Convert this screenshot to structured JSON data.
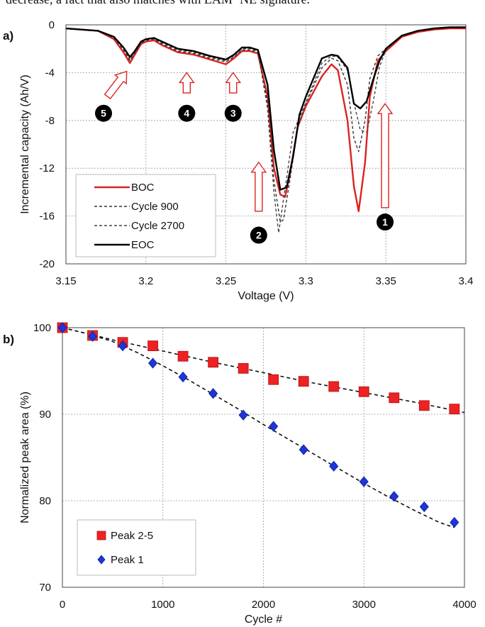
{
  "top_caption": "decrease, a fact that also matches with LAMᵈᵉNE signature.",
  "chart_data": [
    {
      "type": "line",
      "panel_label": "a)",
      "title": "",
      "xlabel": "Voltage (V)",
      "ylabel": "Incremental capacity (Ah/V)",
      "xlim": [
        3.15,
        3.4
      ],
      "ylim": [
        -20,
        0
      ],
      "x_ticks": [
        "3.15",
        "3.2",
        "3.25",
        "3.3",
        "3.35",
        "3.4"
      ],
      "y_ticks": [
        "0",
        "-4",
        "-8",
        "-12",
        "-16",
        "-20"
      ],
      "x_tick_values": [
        3.15,
        3.2,
        3.25,
        3.3,
        3.35,
        3.4
      ],
      "y_tick_values": [
        0,
        -4,
        -8,
        -12,
        -16,
        -20
      ],
      "series": [
        {
          "name": "BOC",
          "color": "#dd2222",
          "style": "solid",
          "width": 2.4,
          "x": [
            3.15,
            3.17,
            3.18,
            3.186,
            3.19,
            3.193,
            3.197,
            3.2,
            3.205,
            3.21,
            3.22,
            3.23,
            3.24,
            3.25,
            3.255,
            3.26,
            3.265,
            3.27,
            3.276,
            3.28,
            3.284,
            3.287,
            3.29,
            3.295,
            3.3,
            3.31,
            3.316,
            3.32,
            3.326,
            3.33,
            3.333,
            3.337,
            3.34,
            3.345,
            3.35,
            3.36,
            3.37,
            3.38,
            3.39,
            3.4
          ],
          "y": [
            -0.3,
            -0.5,
            -1.2,
            -2.3,
            -3.2,
            -2.5,
            -1.6,
            -1.4,
            -1.3,
            -1.7,
            -2.3,
            -2.5,
            -2.9,
            -3.3,
            -2.8,
            -2.2,
            -2.2,
            -2.4,
            -6.0,
            -12.0,
            -14.2,
            -14.4,
            -12.5,
            -8.5,
            -6.8,
            -4.3,
            -3.3,
            -3.8,
            -8.0,
            -13.5,
            -15.6,
            -11.5,
            -6.0,
            -3.0,
            -2.2,
            -1.0,
            -0.6,
            -0.4,
            -0.3,
            -0.3
          ]
        },
        {
          "name": "Cycle 900",
          "color": "#333333",
          "style": "dashed",
          "width": 1.4,
          "x": [
            3.15,
            3.17,
            3.18,
            3.186,
            3.19,
            3.193,
            3.197,
            3.2,
            3.205,
            3.21,
            3.22,
            3.23,
            3.24,
            3.25,
            3.255,
            3.26,
            3.265,
            3.27,
            3.276,
            3.28,
            3.284,
            3.286,
            3.29,
            3.295,
            3.3,
            3.31,
            3.316,
            3.32,
            3.326,
            3.33,
            3.333,
            3.337,
            3.34,
            3.345,
            3.35,
            3.36,
            3.37,
            3.38,
            3.39,
            3.4
          ],
          "y": [
            -0.3,
            -0.5,
            -1.1,
            -2.1,
            -3.0,
            -2.4,
            -1.5,
            -1.3,
            -1.2,
            -1.6,
            -2.2,
            -2.4,
            -2.8,
            -3.1,
            -2.7,
            -2.1,
            -2.1,
            -2.3,
            -6.5,
            -13.0,
            -16.5,
            -16.3,
            -13.0,
            -8.5,
            -6.6,
            -3.6,
            -2.8,
            -3.0,
            -5.0,
            -9.5,
            -10.6,
            -8.0,
            -4.5,
            -2.6,
            -2.0,
            -0.9,
            -0.5,
            -0.3,
            -0.2,
            -0.2
          ]
        },
        {
          "name": "Cycle 2700",
          "color": "#444444",
          "style": "dashed",
          "width": 1.4,
          "x": [
            3.15,
            3.17,
            3.18,
            3.186,
            3.19,
            3.193,
            3.197,
            3.2,
            3.205,
            3.21,
            3.22,
            3.23,
            3.24,
            3.25,
            3.255,
            3.26,
            3.265,
            3.27,
            3.276,
            3.28,
            3.283,
            3.285,
            3.288,
            3.292,
            3.3,
            3.31,
            3.316,
            3.32,
            3.326,
            3.33,
            3.334,
            3.338,
            3.342,
            3.346,
            3.35,
            3.36,
            3.37,
            3.38,
            3.39,
            3.4
          ],
          "y": [
            -0.3,
            -0.5,
            -1.0,
            -2.0,
            -2.9,
            -2.3,
            -1.4,
            -1.2,
            -1.2,
            -1.5,
            -2.1,
            -2.3,
            -2.7,
            -3.0,
            -2.6,
            -2.0,
            -2.0,
            -2.2,
            -7.0,
            -14.0,
            -17.4,
            -15.5,
            -12.8,
            -9.0,
            -6.5,
            -3.2,
            -2.6,
            -2.7,
            -3.8,
            -6.5,
            -8.8,
            -9.0,
            -6.5,
            -3.5,
            -2.1,
            -0.9,
            -0.5,
            -0.3,
            -0.2,
            -0.2
          ]
        },
        {
          "name": "EOC",
          "color": "#000000",
          "style": "solid",
          "width": 2.4,
          "x": [
            3.15,
            3.17,
            3.18,
            3.186,
            3.19,
            3.193,
            3.197,
            3.2,
            3.205,
            3.21,
            3.22,
            3.23,
            3.24,
            3.25,
            3.255,
            3.26,
            3.265,
            3.27,
            3.276,
            3.28,
            3.284,
            3.288,
            3.292,
            3.296,
            3.3,
            3.31,
            3.316,
            3.32,
            3.326,
            3.33,
            3.334,
            3.338,
            3.342,
            3.346,
            3.35,
            3.36,
            3.37,
            3.38,
            3.39,
            3.4
          ],
          "y": [
            -0.3,
            -0.5,
            -1.0,
            -1.9,
            -2.7,
            -2.2,
            -1.4,
            -1.2,
            -1.1,
            -1.4,
            -2.0,
            -2.2,
            -2.6,
            -2.9,
            -2.5,
            -1.9,
            -1.9,
            -2.1,
            -5.0,
            -10.5,
            -13.8,
            -13.6,
            -11.0,
            -7.5,
            -6.0,
            -2.8,
            -2.5,
            -2.6,
            -3.6,
            -6.6,
            -7.0,
            -6.4,
            -4.6,
            -3.0,
            -2.0,
            -0.9,
            -0.5,
            -0.3,
            -0.2,
            -0.2
          ]
        }
      ],
      "annotations": [
        {
          "label": "1",
          "x": 3.3495,
          "y": -16.5,
          "arrow_from": -15.3,
          "arrow_to": -6.6
        },
        {
          "label": "2",
          "x": 3.2705,
          "y": -17.6,
          "arrow_from": -15.6,
          "arrow_to": -11.5
        },
        {
          "label": "3",
          "x": 3.2545,
          "y": -7.4,
          "arrow_from": -5.7,
          "arrow_to": -4.0
        },
        {
          "label": "4",
          "x": 3.2255,
          "y": -7.4,
          "arrow_from": -5.7,
          "arrow_to": -4.0
        }
      ],
      "annotation5": {
        "label": "5",
        "x": 3.1735,
        "y": -7.4,
        "arrow_from": [
          3.176,
          -6.0
        ],
        "arrow_to": [
          3.188,
          -3.9
        ]
      },
      "legend": [
        "BOC",
        "Cycle 900",
        "Cycle 2700",
        "EOC"
      ],
      "legend_position": "bottom-left",
      "grid": true
    },
    {
      "type": "scatter",
      "panel_label": "b)",
      "title": "",
      "xlabel": "Cycle #",
      "ylabel": "Normalized peak area (%)",
      "xlim": [
        0,
        4000
      ],
      "ylim": [
        70,
        100
      ],
      "x_ticks": [
        "0",
        "1000",
        "2000",
        "3000",
        "4000"
      ],
      "y_ticks": [
        "70",
        "80",
        "90",
        "100"
      ],
      "x_tick_values": [
        0,
        1000,
        2000,
        3000,
        4000
      ],
      "y_tick_values": [
        70,
        80,
        90,
        100
      ],
      "series": [
        {
          "name": "Peak 2-5",
          "marker": "square",
          "color": "#ee2222",
          "x": [
            0,
            300,
            600,
            900,
            1200,
            1500,
            1800,
            2100,
            2400,
            2700,
            3000,
            3300,
            3600,
            3900
          ],
          "y": [
            100,
            99.1,
            98.3,
            97.9,
            96.7,
            96.0,
            95.3,
            94.0,
            93.8,
            93.2,
            92.6,
            91.9,
            91.0,
            90.6
          ],
          "fit_x": [
            0,
            500,
            1000,
            1500,
            2000,
            2500,
            3000,
            3500,
            4000
          ],
          "fit_y": [
            100,
            98.6,
            97.3,
            96.0,
            94.8,
            93.6,
            92.5,
            91.4,
            90.2
          ]
        },
        {
          "name": "Peak 1",
          "marker": "diamond",
          "color": "#1e35d8",
          "x": [
            0,
            300,
            600,
            900,
            1200,
            1500,
            1800,
            2100,
            2400,
            2700,
            3000,
            3300,
            3600,
            3900
          ],
          "y": [
            100,
            99.0,
            97.9,
            95.9,
            94.3,
            92.4,
            89.9,
            88.6,
            85.9,
            84.0,
            82.2,
            80.5,
            79.3,
            77.5
          ],
          "fit_x": [
            0,
            250,
            500,
            750,
            1000,
            1250,
            1500,
            1750,
            2000,
            2250,
            2500,
            2750,
            3000,
            3250,
            3500,
            3750,
            3900
          ],
          "fit_y": [
            100,
            99.3,
            98.4,
            97.1,
            95.6,
            94.0,
            92.3,
            90.6,
            88.8,
            87.1,
            85.4,
            83.7,
            82.0,
            80.4,
            78.9,
            77.5,
            76.9
          ]
        }
      ],
      "legend": [
        "Peak 2-5",
        "Peak 1"
      ],
      "legend_position": "bottom-left",
      "grid": true
    }
  ]
}
